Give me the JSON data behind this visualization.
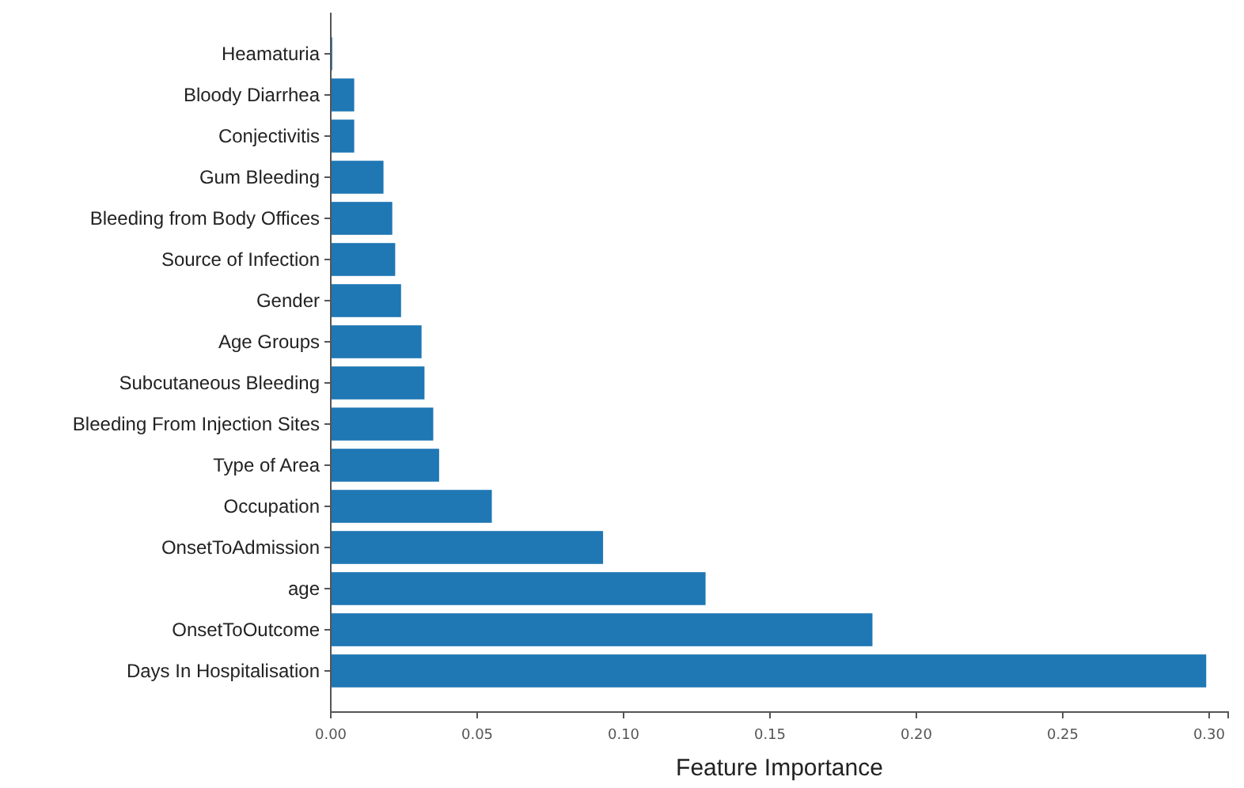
{
  "chart_data": {
    "type": "bar",
    "orientation": "horizontal",
    "xlabel": "Feature Importance",
    "categories": [
      "Heamaturia",
      "Bloody Diarrhea",
      "Conjectivitis",
      "Gum Bleeding",
      "Bleeding from Body Offices",
      "Source of Infection",
      "Gender",
      "Age Groups",
      "Subcutaneous Bleeding",
      "Bleeding From Injection Sites",
      "Type of Area",
      "Occupation",
      "OnsetToAdmission",
      "age",
      "OnsetToOutcome",
      "Days In Hospitalisation"
    ],
    "values": [
      0.0005,
      0.008,
      0.008,
      0.018,
      0.021,
      0.022,
      0.024,
      0.031,
      0.032,
      0.035,
      0.037,
      0.055,
      0.093,
      0.128,
      0.185,
      0.299
    ],
    "color": "#1f77b4",
    "xlim": [
      0,
      0.3065
    ],
    "xticks": [
      {
        "value": 0,
        "label": "0.00"
      },
      {
        "value": 0.05,
        "label": "0.05"
      },
      {
        "value": 0.1,
        "label": "0.10"
      },
      {
        "value": 0.15,
        "label": "0.15"
      },
      {
        "value": 0.2,
        "label": "0.20"
      },
      {
        "value": 0.25,
        "label": "0.25"
      },
      {
        "value": 0.3,
        "label": "0.30"
      }
    ],
    "grid": false
  }
}
